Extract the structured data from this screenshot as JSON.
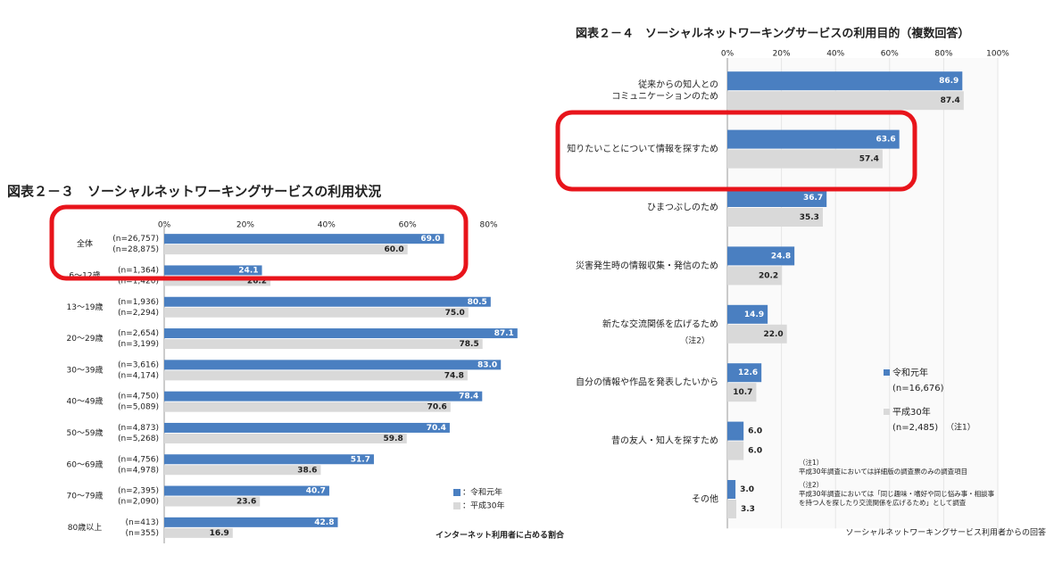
{
  "chart_data": [
    {
      "type": "hbar",
      "title": "図表２－３　ソーシャルネットワーキングサービスの利用状況",
      "categories": [
        "全体",
        "6～12歳",
        "13～19歳",
        "20～29歳",
        "30～39歳",
        "40～49歳",
        "50～59歳",
        "60～69歳",
        "70～79歳",
        "80歳以上"
      ],
      "series": [
        {
          "name": "：令和元年",
          "color": "#4a7fc1",
          "values": [
            69.0,
            24.1,
            80.5,
            87.1,
            83.0,
            78.4,
            70.4,
            51.7,
            40.7,
            42.8
          ],
          "value_labels": [
            "69.0",
            "24.1",
            "80.5",
            "87.1",
            "83.0",
            "78.4",
            "70.4",
            "51.7",
            "40.7",
            "42.8"
          ],
          "n_labels": [
            "(n=26,757)",
            "(n=1,364)",
            "(n=1,936)",
            "(n=2,654)",
            "(n=3,616)",
            "(n=4,750)",
            "(n=4,873)",
            "(n=4,756)",
            "(n=2,395)",
            "(n=413)"
          ]
        },
        {
          "name": "：平成30年",
          "color": "#d9d9d9",
          "values": [
            60.0,
            26.2,
            75.0,
            78.5,
            74.8,
            70.6,
            59.8,
            38.6,
            23.6,
            16.9
          ],
          "value_labels": [
            "60.0",
            "26.2",
            "75.0",
            "78.5",
            "74.8",
            "70.6",
            "59.8",
            "38.6",
            "23.6",
            "16.9"
          ],
          "n_labels": [
            "(n=28,875)",
            "(n=1,420)",
            "(n=2,294)",
            "(n=3,199)",
            "(n=4,174)",
            "(n=5,089)",
            "(n=5,268)",
            "(n=4,978)",
            "(n=2,090)",
            "(n=355)"
          ]
        }
      ],
      "xlim": [
        0,
        90
      ],
      "xticks": [
        {
          "value": 0,
          "label": "0%"
        },
        {
          "value": 20,
          "label": "20%"
        },
        {
          "value": 40,
          "label": "40%"
        },
        {
          "value": 60,
          "label": "60%"
        },
        {
          "value": 80,
          "label": "80%"
        }
      ],
      "grid": false,
      "footnote": "インターネット利用者に占める割合"
    },
    {
      "type": "hbar",
      "title": "図表２－４　ソーシャルネットワーキングサービスの利用目的（複数回答）",
      "categories": [
        "従来からの知人との\nコミュニケーションのため",
        "知りたいことについて情報を探すため",
        "ひまつぶしのため",
        "災害発生時の情報収集・発信のため",
        "新たな交流関係を広げるため",
        "自分の情報や作品を発表したいから",
        "昔の友人・知人を探すため",
        "その他"
      ],
      "annotation": "（注2）",
      "series": [
        {
          "name": "令和元年",
          "n": "(n=16,676)",
          "color": "#4a7fc1",
          "values": [
            86.9,
            63.6,
            36.7,
            24.8,
            14.9,
            12.6,
            6.0,
            3.0
          ],
          "value_labels": [
            "86.9",
            "63.6",
            "36.7",
            "24.8",
            "14.9",
            "12.6",
            "6.0",
            "3.0"
          ]
        },
        {
          "name": "平成30年",
          "n": "(n=2,485)",
          "note": "（注1）",
          "color": "#d9d9d9",
          "values": [
            87.4,
            57.4,
            35.3,
            20.2,
            22.0,
            10.7,
            6.0,
            3.3
          ],
          "value_labels": [
            "87.4",
            "57.4",
            "35.3",
            "20.2",
            "22.0",
            "10.7",
            "6.0",
            "3.3"
          ]
        }
      ],
      "xlim": [
        0,
        100
      ],
      "xticks": [
        {
          "value": 0,
          "label": "0%"
        },
        {
          "value": 20,
          "label": "20%"
        },
        {
          "value": 40,
          "label": "40%"
        },
        {
          "value": 60,
          "label": "60%"
        },
        {
          "value": 80,
          "label": "80%"
        },
        {
          "value": 100,
          "label": "100%"
        }
      ],
      "grid": true,
      "notes": [
        [
          "（注1）",
          "平成30年調査においては詳細版の調査票のみの調査項目"
        ],
        [
          "（注2）",
          "平成30年調査においては「同じ趣味・嗜好や同じ悩み事・相談事",
          "を持つ人を探したり交流関係を広げるため」として調査"
        ]
      ],
      "footnote": "ソーシャルネットワーキングサービス利用者からの回答"
    }
  ]
}
